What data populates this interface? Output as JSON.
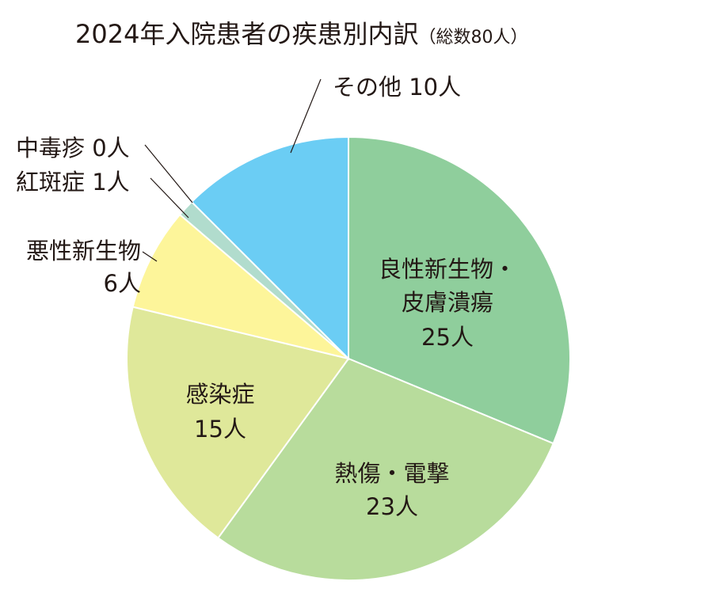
{
  "chart_data": {
    "type": "pie",
    "title": "2024年入院患者の疾患別内訳",
    "subtitle": "（総数80人）",
    "total": 80,
    "unit": "人",
    "start": "top",
    "direction": "clockwise",
    "slices": [
      {
        "name": "良性新生物・皮膚潰瘍",
        "lines": [
          "良性新生物・",
          "皮膚潰瘍"
        ],
        "value": 25,
        "label": "25人",
        "color": "#8fce9c"
      },
      {
        "name": "熱傷・電撃",
        "lines": [
          "熱傷・電撃"
        ],
        "value": 23,
        "label": "23人",
        "color": "#b8dc9c"
      },
      {
        "name": "感染症",
        "lines": [
          "感染症"
        ],
        "value": 15,
        "label": "15人",
        "color": "#dfe89a"
      },
      {
        "name": "悪性新生物",
        "lines": [
          "悪性新生物"
        ],
        "value": 6,
        "label": "6人",
        "color": "#fdf59a"
      },
      {
        "name": "紅斑症",
        "lines": [
          "紅斑症 1人"
        ],
        "value": 1,
        "label": "",
        "color": "#b1dccd"
      },
      {
        "name": "中毒疹",
        "lines": [
          "中毒疹 0人"
        ],
        "value": 0,
        "label": "",
        "color": "#b1dccd"
      },
      {
        "name": "その他",
        "lines": [
          "その他 10人"
        ],
        "value": 10,
        "label": "",
        "color": "#6bcdf4"
      }
    ]
  }
}
